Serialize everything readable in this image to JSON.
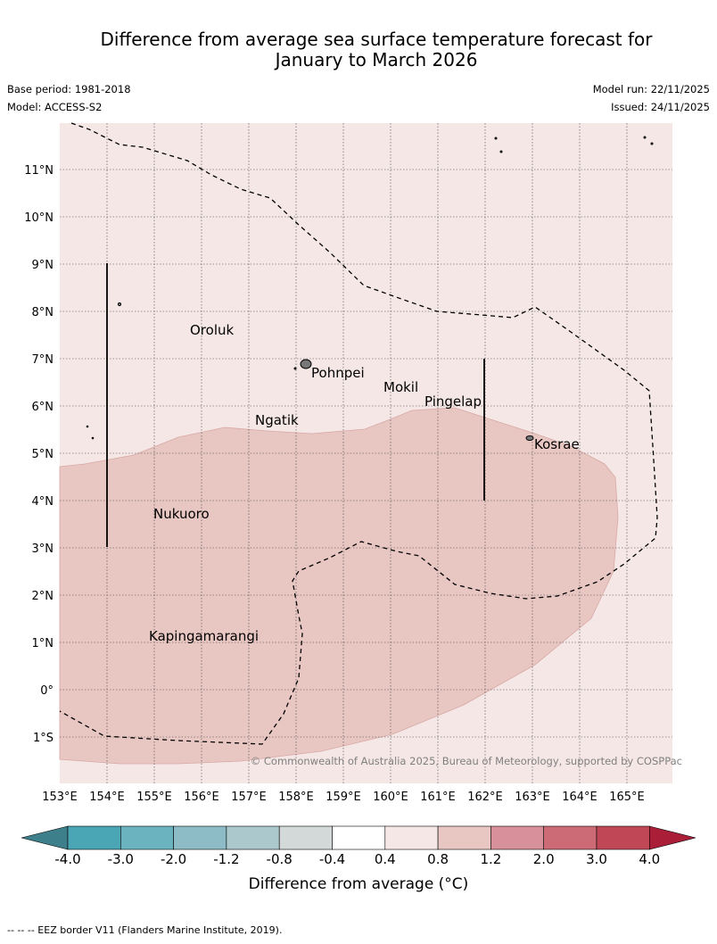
{
  "title_line1": "Difference from average sea surface temperature forecast for",
  "title_line2": "January to March 2026",
  "meta": {
    "base_period": "Base period: 1981-2018",
    "model": "Model: ACCESS-S2",
    "model_run": "Model run: 22/11/2025",
    "issued": "Issued: 24/11/2025"
  },
  "map": {
    "lon_labels": [
      "153°E",
      "154°E",
      "155°E",
      "156°E",
      "157°E",
      "158°E",
      "159°E",
      "160°E",
      "161°E",
      "162°E",
      "163°E",
      "164°E",
      "165°E"
    ],
    "lat_labels": [
      "11°N",
      "10°N",
      "9°N",
      "8°N",
      "7°N",
      "6°N",
      "5°N",
      "4°N",
      "3°N",
      "2°N",
      "1°N",
      "0°",
      "1°S"
    ],
    "places": [
      "Oroluk",
      "Pohnpei",
      "Mokil",
      "Pingelap",
      "Ngatik",
      "Kosrae",
      "Nukuoro",
      "Kapingamarangi"
    ],
    "copyright": "© Commonwealth of Australia 2025, Bureau of Meteorology, supported by COSPPac"
  },
  "colorbar": {
    "ticks": [
      "-4.0",
      "-3.0",
      "-2.0",
      "-1.2",
      "-0.8",
      "-0.4",
      "0.4",
      "0.8",
      "1.2",
      "2.0",
      "3.0",
      "4.0"
    ],
    "colors": [
      "#3d7f8b",
      "#4aa6b4",
      "#6cb3c0",
      "#8ebcc6",
      "#abc9cc",
      "#d3d9d8",
      "#ffffff",
      "#f5e7e6",
      "#e8c6c2",
      "#d8919a",
      "#cc6b76",
      "#c04856",
      "#aa1e38"
    ],
    "label": "Difference from average (°C)"
  },
  "footnote": "--  --  -- EEZ border V11 (Flanders Marine Institute, 2019)."
}
